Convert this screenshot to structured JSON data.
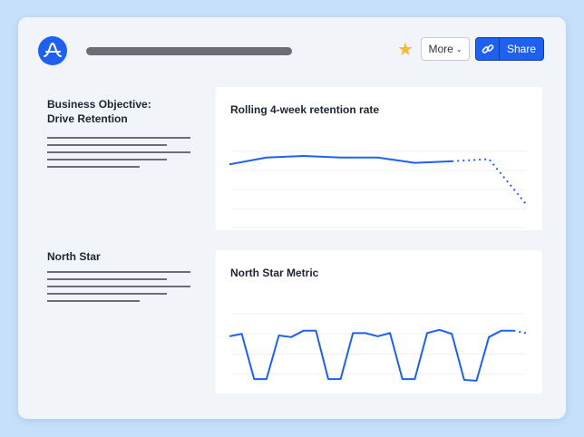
{
  "header": {
    "more_label": "More",
    "share_label": "Share",
    "icons": {
      "logo": "amplitude-logo",
      "star": "star-icon",
      "chevron": "chevron-down-icon",
      "link": "link-icon"
    },
    "accent": "#1e61f0",
    "star_color": "#f6b73c"
  },
  "sections": [
    {
      "title_line1": "Business Objective:",
      "title_line2": "Drive Retention"
    },
    {
      "title_line1": "North Star",
      "title_line2": ""
    }
  ],
  "chart_data": [
    {
      "type": "line",
      "title": "Rolling 4-week retention rate",
      "grid": true,
      "line_color": "#1e61f0",
      "x": [
        1,
        2,
        3,
        4,
        5,
        6,
        7,
        8,
        9
      ],
      "values": [
        83,
        92,
        94,
        92,
        92,
        85,
        87,
        90,
        31
      ],
      "projected_from_index": 6
    },
    {
      "type": "line",
      "title": "North Star Metric",
      "grid": true,
      "line_color": "#1e61f0",
      "x": [
        1,
        2,
        3,
        4,
        5,
        6,
        7,
        8,
        9,
        10,
        11,
        12,
        13,
        14,
        15,
        16,
        17,
        18,
        19,
        20,
        21,
        22,
        23,
        24,
        25
      ],
      "values": [
        72,
        75,
        19,
        19,
        73,
        71,
        79,
        79,
        19,
        19,
        76,
        76,
        72,
        76,
        19,
        19,
        76,
        80,
        75,
        18,
        17,
        71,
        79,
        79,
        76
      ],
      "projected_from_index": 23
    }
  ]
}
